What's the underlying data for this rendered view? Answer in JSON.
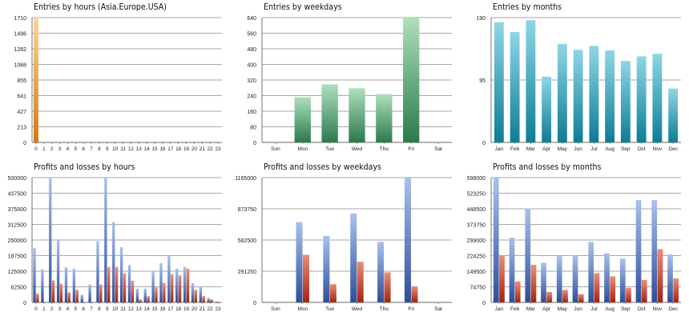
{
  "charts": [
    {
      "title": "Entries by hours (Asia.Europe.USA)",
      "type": "bar",
      "categories": [
        "0",
        "1",
        "2",
        "3",
        "4",
        "5",
        "6",
        "7",
        "8",
        "9",
        "10",
        "11",
        "12",
        "13",
        "14",
        "15",
        "16",
        "17",
        "18",
        "19",
        "20",
        "21",
        "22",
        "23"
      ],
      "yticks": [
        "0",
        "213",
        "427",
        "641",
        "855",
        "1068",
        "1282",
        "1496",
        "1710"
      ],
      "ylim": [
        0,
        1710
      ],
      "series": [
        {
          "values": [
            1710,
            0,
            0,
            0,
            0,
            0,
            0,
            0,
            0,
            0,
            0,
            0,
            0,
            0,
            0,
            0,
            0,
            0,
            0,
            0,
            0,
            0,
            0,
            0
          ],
          "color": "orange"
        }
      ]
    },
    {
      "title": "Entries by weekdays",
      "type": "bar",
      "categories": [
        "Sun",
        "Mon",
        "Tue",
        "Wed",
        "Thu",
        "Fri",
        "Sat"
      ],
      "yticks": [
        "0",
        "80",
        "160",
        "240",
        "320",
        "400",
        "480",
        "560",
        "640"
      ],
      "ylim": [
        0,
        640
      ],
      "series": [
        {
          "values": [
            0,
            232,
            298,
            278,
            248,
            640,
            0
          ],
          "color": "green"
        }
      ]
    },
    {
      "title": "Entries by months",
      "type": "bar",
      "categories": [
        "Jan",
        "Feb",
        "Mar",
        "Apr",
        "May",
        "Jun",
        "Jul",
        "Aug",
        "Sep",
        "Oct",
        "Nov",
        "Dec"
      ],
      "yticks": [
        "0",
        "95",
        "190"
      ],
      "ylim": [
        0,
        190
      ],
      "series": [
        {
          "values": [
            183,
            168,
            186,
            100,
            150,
            141,
            147,
            140,
            124,
            131,
            135,
            82
          ],
          "color": "teal"
        }
      ]
    },
    {
      "title": "Profits and losses by hours",
      "type": "bar",
      "categories": [
        "0",
        "1",
        "2",
        "3",
        "4",
        "5",
        "6",
        "7",
        "8",
        "9",
        "10",
        "11",
        "12",
        "13",
        "14",
        "15",
        "16",
        "17",
        "18",
        "19",
        "20",
        "21",
        "22",
        "23"
      ],
      "yticks": [
        "0",
        "62500",
        "125000",
        "187500",
        "250000",
        "312500",
        "375000",
        "437500",
        "500000"
      ],
      "ylim": [
        0,
        500000
      ],
      "series": [
        {
          "values": [
            218000,
            133000,
            500000,
            253000,
            141000,
            135000,
            30000,
            72000,
            245000,
            500000,
            322000,
            221000,
            150000,
            55000,
            55000,
            125000,
            157000,
            187000,
            135000,
            142000,
            77000,
            65000,
            18000,
            4000
          ],
          "color": "blue"
        },
        {
          "values": [
            35000,
            0,
            88000,
            75000,
            40000,
            50000,
            0,
            0,
            72000,
            142000,
            142000,
            117000,
            87000,
            12000,
            25000,
            60000,
            78000,
            113000,
            108000,
            135000,
            50000,
            25000,
            12000,
            0
          ],
          "color": "red"
        }
      ]
    },
    {
      "title": "Profits and losses by weekdays",
      "type": "bar",
      "categories": [
        "Sun",
        "Mon",
        "Tue",
        "Wed",
        "Thu",
        "Fri",
        "Sat"
      ],
      "yticks": [
        "0",
        "291250",
        "582500",
        "873750",
        "1165000"
      ],
      "ylim": [
        0,
        1165000
      ],
      "series": [
        {
          "values": [
            0,
            750000,
            620000,
            830000,
            565000,
            1165000,
            0
          ],
          "color": "blue"
        },
        {
          "values": [
            0,
            445000,
            170000,
            380000,
            280000,
            150000,
            0
          ],
          "color": "red"
        }
      ]
    },
    {
      "title": "Profits and losses by months",
      "type": "bar",
      "categories": [
        "Jan",
        "Feb",
        "Mar",
        "Apr",
        "May",
        "Jun",
        "Jul",
        "Aug",
        "Sep",
        "Oct",
        "Nov",
        "Dec"
      ],
      "yticks": [
        "0",
        "74750",
        "149500",
        "224250",
        "299000",
        "373750",
        "448500",
        "523250",
        "598000"
      ],
      "ylim": [
        0,
        598000
      ],
      "series": [
        {
          "values": [
            598000,
            310000,
            450000,
            190000,
            222000,
            225000,
            290000,
            235000,
            210000,
            490000,
            490000,
            230000
          ],
          "color": "blue"
        },
        {
          "values": [
            225000,
            100000,
            180000,
            50000,
            60000,
            40000,
            140000,
            125000,
            70000,
            108000,
            255000,
            115000
          ],
          "color": "red"
        }
      ]
    }
  ]
}
